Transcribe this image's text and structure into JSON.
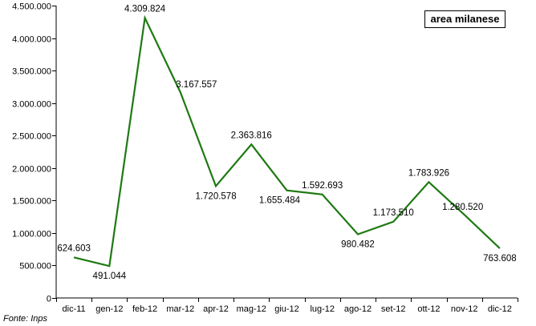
{
  "chart_data": {
    "type": "line",
    "title": "area milanese",
    "source": "Fonte: Inps",
    "categories": [
      "dic-11",
      "gen-12",
      "feb-12",
      "mar-12",
      "apr-12",
      "mag-12",
      "giu-12",
      "lug-12",
      "ago-12",
      "set-12",
      "ott-12",
      "nov-12",
      "dic-12"
    ],
    "series": [
      {
        "values": [
          624603,
          491044,
          4309824,
          3167557,
          1720578,
          2363816,
          1655484,
          1592693,
          980482,
          1173510,
          1783926,
          1280520,
          763608
        ],
        "labels": [
          "624.603",
          "491.044",
          "4.309.824",
          "3.167.557",
          "1.720.578",
          "2.363.816",
          "1.655.484",
          "1.592.693",
          "980.482",
          "1.173.510",
          "1.783.926",
          "1.280.520",
          "763.608"
        ],
        "color": "#1e7a12"
      }
    ],
    "ylim": [
      0,
      4500000
    ],
    "yticks": [
      0,
      500000,
      1000000,
      1500000,
      2000000,
      2500000,
      3000000,
      3500000,
      4000000,
      4500000
    ],
    "ytick_labels": [
      "0",
      "500.000",
      "1.000.000",
      "1.500.000",
      "2.000.000",
      "2.500.000",
      "3.000.000",
      "3.500.000",
      "4.000.000",
      "4.500.000"
    ],
    "grid": false,
    "legend_position": "top-right"
  }
}
